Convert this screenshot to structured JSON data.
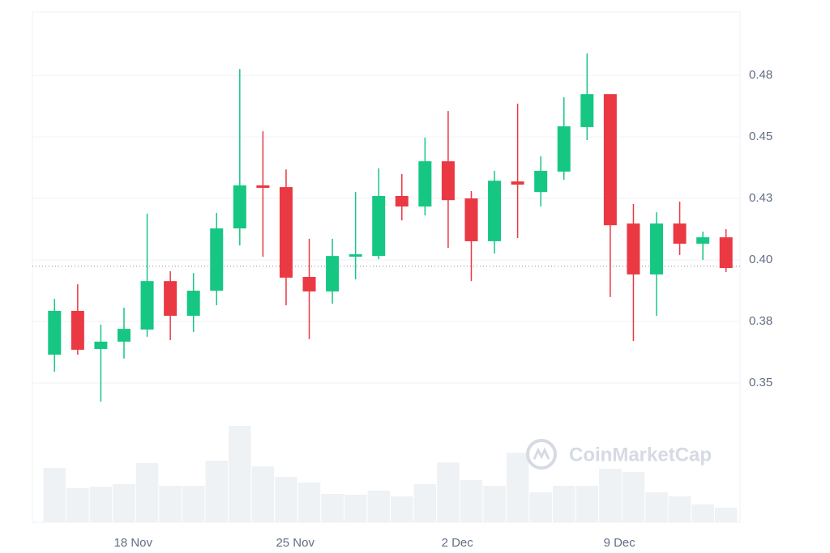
{
  "chart_data": {
    "type": "candlestick",
    "categories": [
      null,
      null,
      null,
      null,
      "18 Nov",
      null,
      null,
      null,
      null,
      null,
      null,
      "25 Nov",
      null,
      null,
      null,
      null,
      null,
      null,
      "2 Dec",
      null,
      null,
      null,
      null,
      null,
      null,
      "9 Dec",
      null,
      null,
      null,
      null
    ],
    "open": [
      0.3615,
      0.3793,
      0.3638,
      0.3668,
      0.3717,
      0.3914,
      0.3773,
      0.3875,
      0.4128,
      0.4303,
      0.4296,
      0.3931,
      0.3872,
      0.4013,
      0.4016,
      0.426,
      0.4217,
      0.4401,
      0.425,
      0.4076,
      0.4319,
      0.4276,
      0.4359,
      0.454,
      0.4674,
      0.4148,
      0.3941,
      0.4148,
      0.4066,
      0.4092
    ],
    "high": [
      0.3842,
      0.3901,
      0.3737,
      0.3806,
      0.4188,
      0.3954,
      0.3947,
      0.4191,
      0.4776,
      0.4523,
      0.4368,
      0.4086,
      0.4086,
      0.4276,
      0.4372,
      0.4349,
      0.4497,
      0.4605,
      0.428,
      0.4362,
      0.4635,
      0.4421,
      0.4661,
      0.4839,
      0.4674,
      0.4227,
      0.4194,
      0.4237,
      0.4115,
      0.4125
    ],
    "low": [
      0.3546,
      0.3615,
      0.3424,
      0.3599,
      0.3688,
      0.3674,
      0.3707,
      0.3816,
      0.4059,
      0.4013,
      0.3816,
      0.3678,
      0.3822,
      0.3921,
      0.4003,
      0.4161,
      0.4181,
      0.4049,
      0.3914,
      0.4026,
      0.4089,
      0.4217,
      0.4326,
      0.4487,
      0.3849,
      0.3671,
      0.3773,
      0.402,
      0.4,
      0.3951
    ],
    "close": [
      0.3793,
      0.3635,
      0.3668,
      0.372,
      0.3914,
      0.3773,
      0.3875,
      0.4128,
      0.4303,
      0.4293,
      0.3928,
      0.3872,
      0.4016,
      0.4023,
      0.426,
      0.4217,
      0.4401,
      0.4243,
      0.4076,
      0.4322,
      0.4306,
      0.4362,
      0.4543,
      0.4674,
      0.4141,
      0.3941,
      0.4148,
      0.4066,
      0.4092,
      0.3967
    ],
    "volume": [
      67,
      42,
      44,
      47,
      73,
      45,
      45,
      76,
      119,
      69,
      56,
      49,
      35,
      34,
      39,
      32,
      47,
      74,
      52,
      45,
      86,
      37,
      45,
      45,
      66,
      62,
      37,
      32,
      22,
      18
    ],
    "volume_lim": [
      0,
      200
    ],
    "up_color": "#16c784",
    "down_color": "#ea3943",
    "volume_color": "#eff2f5",
    "current_price": 0.3974,
    "ylim": [
      0.2934,
      0.5007
    ],
    "yticks": [
      0.35,
      {
        "value": 0.375,
        "label": "0.38"
      },
      {
        "value": 0.4,
        "label": "0.40"
      },
      {
        "value": 0.425,
        "label": "0.43"
      },
      0.45,
      {
        "value": 0.475,
        "label": "0.48"
      }
    ],
    "grid": true,
    "watermark": "CoinMarketCap"
  }
}
